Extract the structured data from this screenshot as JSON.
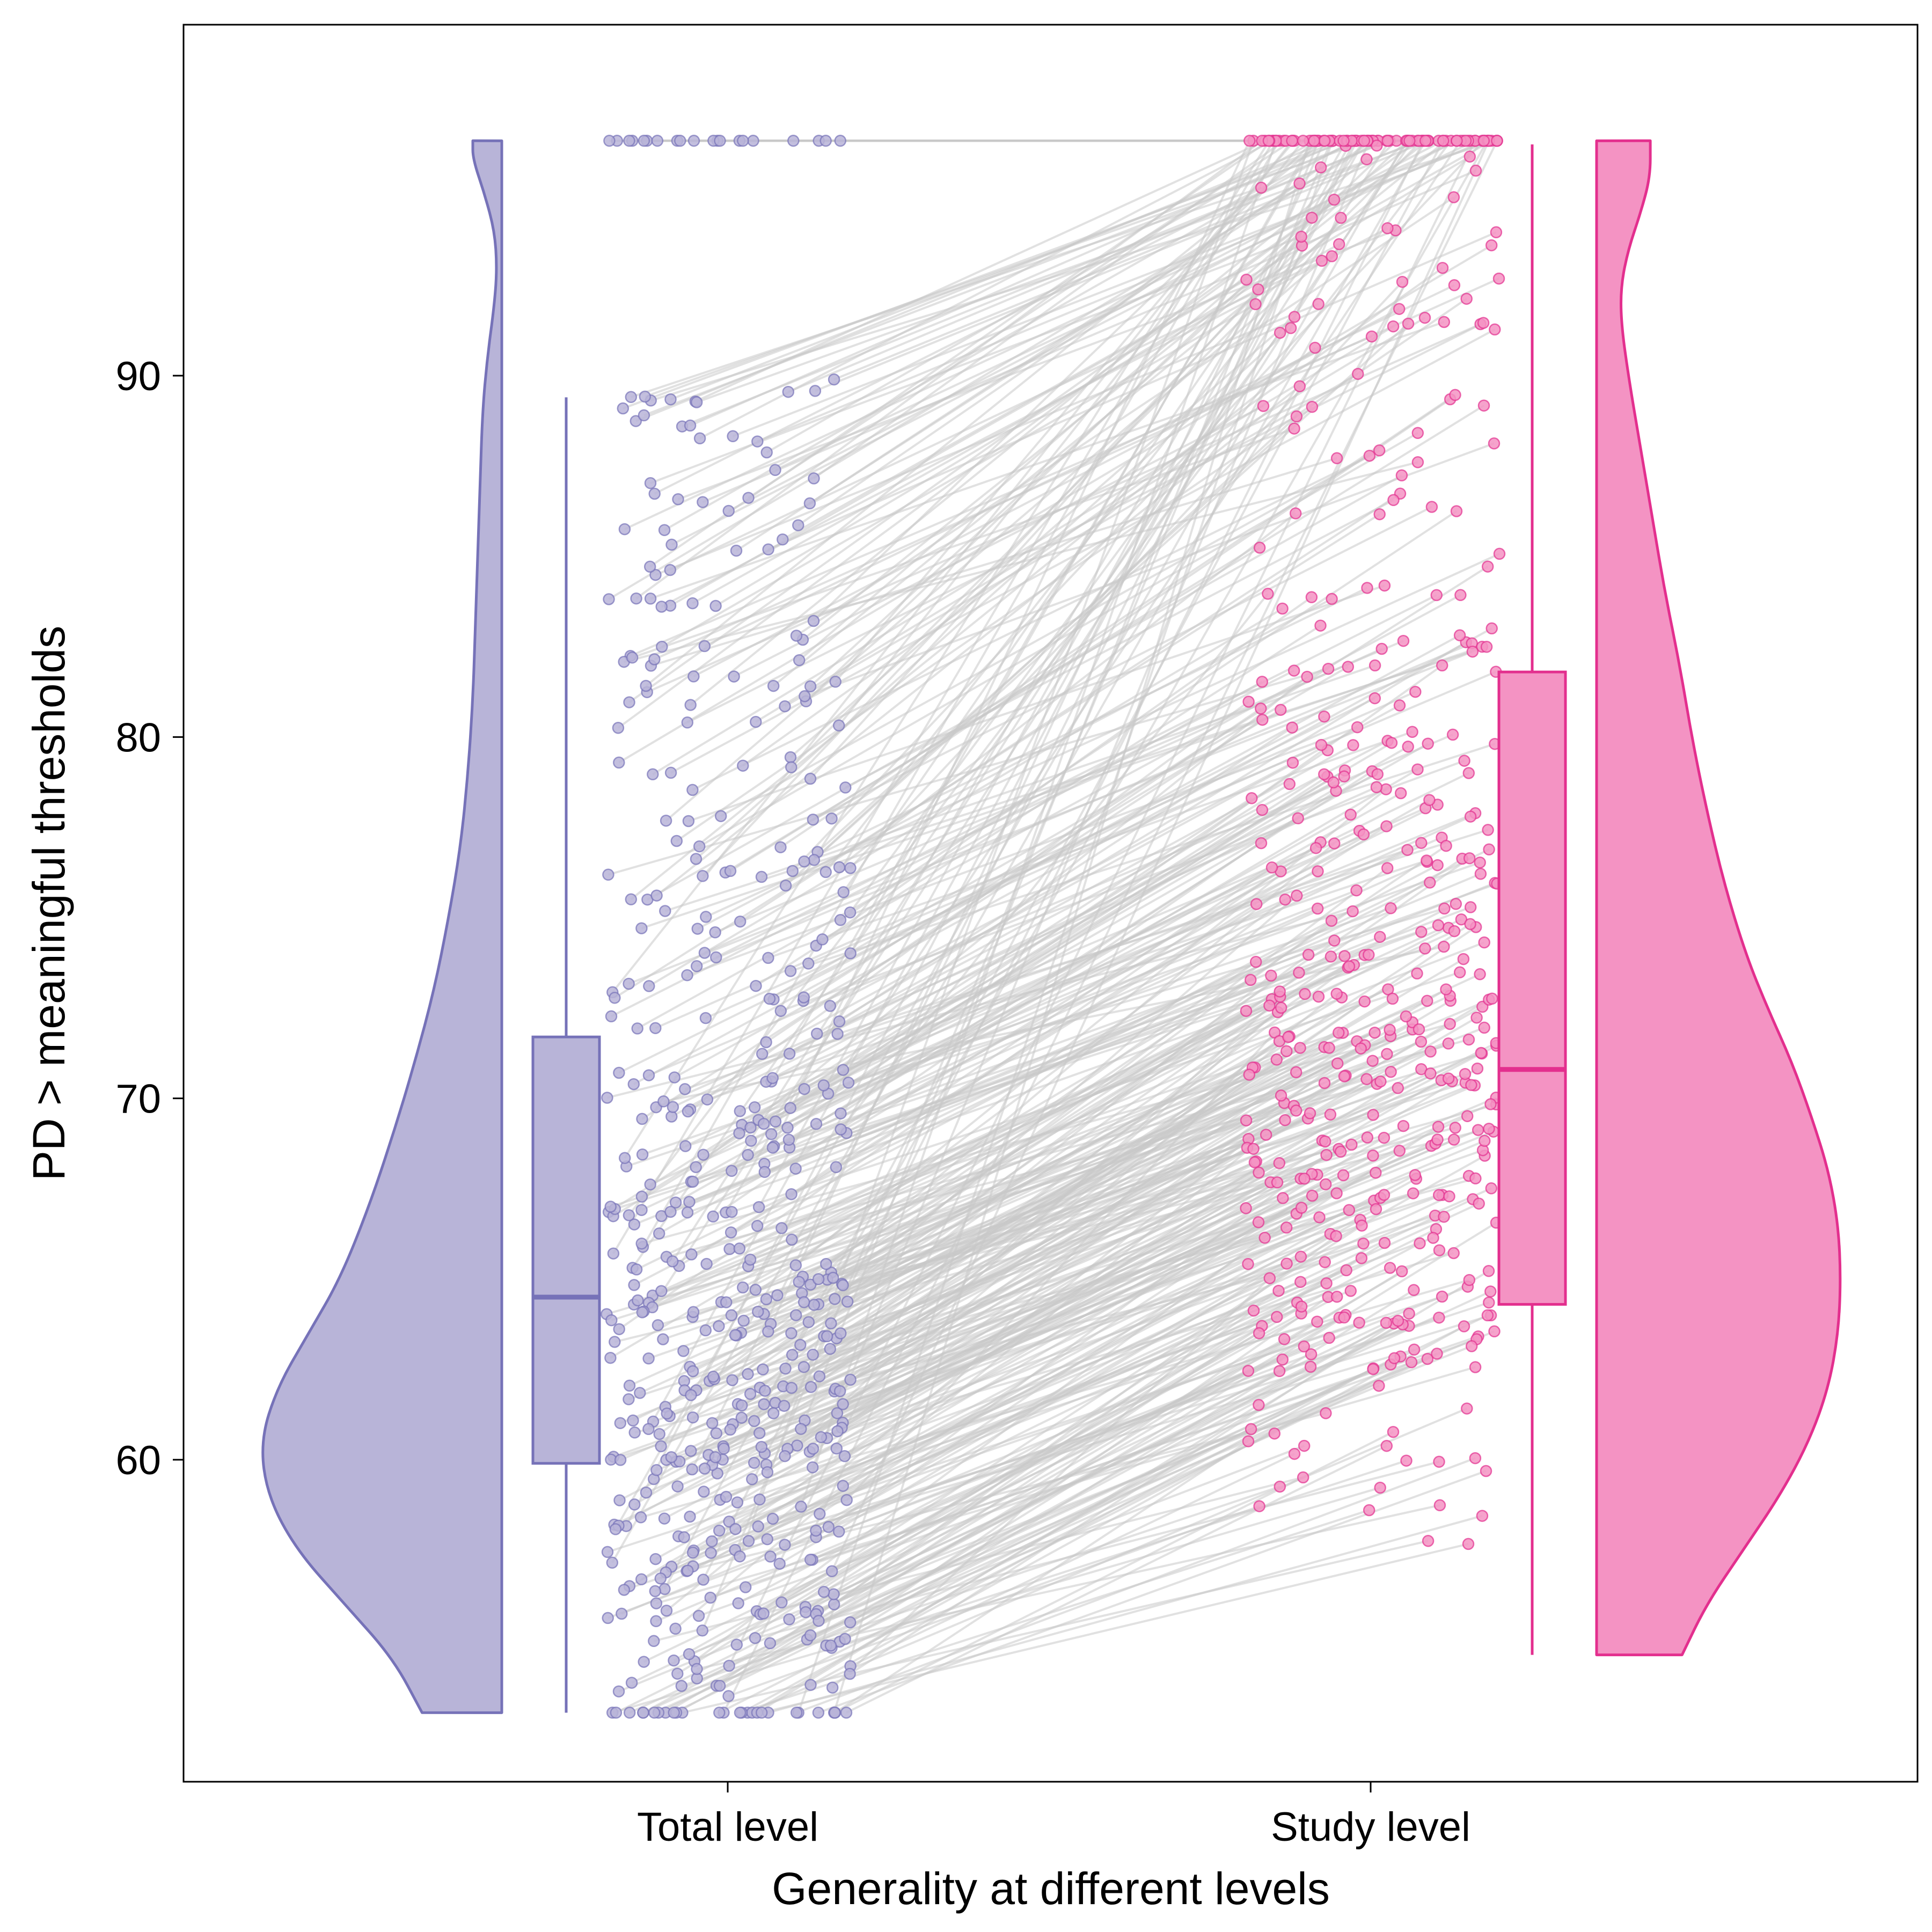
{
  "chart_data": {
    "type": "raincloud",
    "title": "",
    "xlabel": "Generality at different levels",
    "ylabel": "PD > meaningful thresholds",
    "ylim": [
      51,
      97.5
    ],
    "yticks": [
      60,
      70,
      80,
      90
    ],
    "categories": [
      "Total level",
      "Study level"
    ],
    "grid": false,
    "legend": "none",
    "colors": {
      "total_fill": "#b8b4d8",
      "total_stroke": "#7672b8",
      "study_fill": "#f493c3",
      "study_stroke": "#e32f8e",
      "link_line": "#c8c8c8",
      "axis": "#000000"
    },
    "series": [
      {
        "name": "Total level",
        "range": [
          53.0,
          96.5
        ],
        "boxplot": {
          "whisker_low": 53.0,
          "q1": 59.9,
          "median": 64.5,
          "q3": 71.7,
          "whisker_high": 89.4
        },
        "density": [
          [
            53.0,
            0.33
          ],
          [
            54.5,
            0.45
          ],
          [
            56.0,
            0.65
          ],
          [
            57.5,
            0.85
          ],
          [
            59.0,
            0.97
          ],
          [
            60.5,
            1.0
          ],
          [
            62.0,
            0.93
          ],
          [
            63.5,
            0.8
          ],
          [
            65.0,
            0.67
          ],
          [
            67.0,
            0.55
          ],
          [
            69.0,
            0.45
          ],
          [
            71.0,
            0.36
          ],
          [
            73.0,
            0.28
          ],
          [
            75.0,
            0.22
          ],
          [
            77.0,
            0.17
          ],
          [
            79.0,
            0.14
          ],
          [
            81.0,
            0.12
          ],
          [
            83.0,
            0.11
          ],
          [
            85.0,
            0.1
          ],
          [
            87.0,
            0.09
          ],
          [
            89.0,
            0.08
          ],
          [
            90.5,
            0.06
          ],
          [
            92.0,
            0.03
          ],
          [
            93.0,
            0.02
          ],
          [
            94.0,
            0.03
          ],
          [
            95.0,
            0.07
          ],
          [
            96.0,
            0.12
          ],
          [
            96.5,
            0.12
          ]
        ]
      },
      {
        "name": "Study level",
        "range": [
          54.6,
          96.5
        ],
        "boxplot": {
          "whisker_low": 54.6,
          "q1": 64.3,
          "median": 70.8,
          "q3": 81.8,
          "whisker_high": 96.4
        },
        "density": [
          [
            54.6,
            0.35
          ],
          [
            56.0,
            0.45
          ],
          [
            57.5,
            0.6
          ],
          [
            59.0,
            0.75
          ],
          [
            60.5,
            0.87
          ],
          [
            62.0,
            0.95
          ],
          [
            63.5,
            0.99
          ],
          [
            65.0,
            1.0
          ],
          [
            66.5,
            0.99
          ],
          [
            68.0,
            0.95
          ],
          [
            69.5,
            0.88
          ],
          [
            71.0,
            0.8
          ],
          [
            72.5,
            0.7
          ],
          [
            74.0,
            0.61
          ],
          [
            76.0,
            0.52
          ],
          [
            78.0,
            0.45
          ],
          [
            80.0,
            0.39
          ],
          [
            82.0,
            0.34
          ],
          [
            84.0,
            0.28
          ],
          [
            86.0,
            0.23
          ],
          [
            88.0,
            0.18
          ],
          [
            90.0,
            0.13
          ],
          [
            91.5,
            0.1
          ],
          [
            92.5,
            0.1
          ],
          [
            93.5,
            0.13
          ],
          [
            94.5,
            0.18
          ],
          [
            95.5,
            0.22
          ],
          [
            96.5,
            0.22
          ]
        ]
      }
    ],
    "paired_points_note_count": 560
  }
}
